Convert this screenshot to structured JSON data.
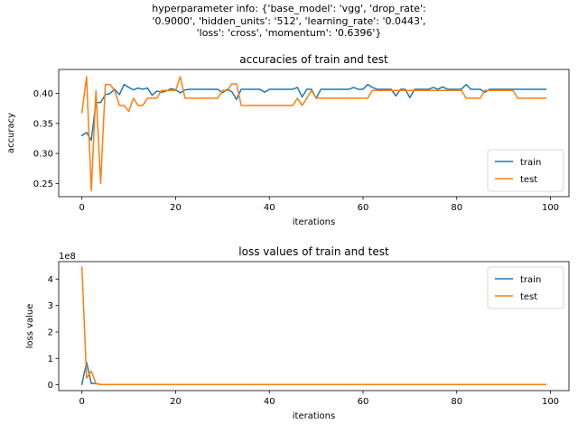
{
  "suptitle": {
    "line1": "hyperparameter info: {'base_model': 'vgg', 'drop_rate':",
    "line2": "'0.9000', 'hidden_units': '512', 'learning_rate': '0.0443',",
    "line3": "'loss': 'cross', 'momentum': '0.6396'}"
  },
  "colors": {
    "train": "#1f77b4",
    "test": "#ff7f0e"
  },
  "chart_data": [
    {
      "type": "line",
      "title": "accuracies of train and test",
      "xlabel": "iterations",
      "ylabel": "accuracy",
      "xlim": [
        -4.95,
        103.95
      ],
      "ylim": [
        0.228,
        0.44
      ],
      "xticks": [
        0,
        20,
        40,
        60,
        80,
        100
      ],
      "yticks": [
        0.25,
        0.3,
        0.35,
        0.4
      ],
      "ytick_labels": [
        "0.25",
        "0.30",
        "0.35",
        "0.40"
      ],
      "grid": false,
      "legend": "lower right",
      "series": [
        {
          "name": "train",
          "values": [
            0.33,
            0.335,
            0.322,
            0.385,
            0.385,
            0.398,
            0.4,
            0.407,
            0.398,
            0.415,
            0.41,
            0.406,
            0.409,
            0.407,
            0.409,
            0.397,
            0.404,
            0.402,
            0.404,
            0.408,
            0.406,
            0.401,
            0.406,
            0.407,
            0.407,
            0.407,
            0.407,
            0.407,
            0.407,
            0.407,
            0.401,
            0.407,
            0.403,
            0.39,
            0.407,
            0.407,
            0.407,
            0.407,
            0.407,
            0.402,
            0.407,
            0.407,
            0.407,
            0.407,
            0.407,
            0.407,
            0.41,
            0.394,
            0.407,
            0.407,
            0.392,
            0.407,
            0.407,
            0.407,
            0.407,
            0.407,
            0.407,
            0.407,
            0.41,
            0.407,
            0.407,
            0.415,
            0.41,
            0.407,
            0.407,
            0.407,
            0.407,
            0.396,
            0.407,
            0.407,
            0.393,
            0.407,
            0.407,
            0.407,
            0.407,
            0.41,
            0.407,
            0.411,
            0.407,
            0.407,
            0.407,
            0.407,
            0.415,
            0.407,
            0.407,
            0.407,
            0.402,
            0.407,
            0.407,
            0.407,
            0.407,
            0.407,
            0.407,
            0.407,
            0.407,
            0.407,
            0.407,
            0.407,
            0.407,
            0.407
          ]
        },
        {
          "name": "test",
          "values": [
            0.368,
            0.428,
            0.238,
            0.405,
            0.25,
            0.415,
            0.415,
            0.405,
            0.38,
            0.38,
            0.37,
            0.392,
            0.38,
            0.38,
            0.392,
            0.392,
            0.392,
            0.405,
            0.405,
            0.405,
            0.405,
            0.428,
            0.392,
            0.392,
            0.392,
            0.392,
            0.392,
            0.392,
            0.392,
            0.392,
            0.405,
            0.405,
            0.416,
            0.416,
            0.38,
            0.38,
            0.38,
            0.38,
            0.38,
            0.38,
            0.38,
            0.38,
            0.38,
            0.38,
            0.38,
            0.38,
            0.392,
            0.38,
            0.392,
            0.405,
            0.392,
            0.392,
            0.392,
            0.392,
            0.392,
            0.392,
            0.392,
            0.392,
            0.392,
            0.392,
            0.392,
            0.392,
            0.405,
            0.405,
            0.405,
            0.405,
            0.405,
            0.405,
            0.405,
            0.405,
            0.405,
            0.405,
            0.405,
            0.405,
            0.405,
            0.405,
            0.405,
            0.405,
            0.405,
            0.405,
            0.405,
            0.405,
            0.392,
            0.392,
            0.392,
            0.392,
            0.405,
            0.405,
            0.405,
            0.405,
            0.405,
            0.405,
            0.405,
            0.392,
            0.392,
            0.392,
            0.392,
            0.392,
            0.392,
            0.392
          ]
        }
      ]
    },
    {
      "type": "line",
      "title": "loss values of train and test",
      "xlabel": "iterations",
      "ylabel": "loss value",
      "offset_text": "1e8",
      "xlim": [
        -4.95,
        103.95
      ],
      "ylim": [
        -0.22,
        4.66
      ],
      "xticks": [
        0,
        20,
        40,
        60,
        80,
        100
      ],
      "yticks": [
        0,
        1,
        2,
        3,
        4
      ],
      "ytick_labels": [
        "0",
        "1",
        "2",
        "3",
        "4"
      ],
      "grid": false,
      "legend": "upper right",
      "series": [
        {
          "name": "train",
          "values": [
            0.02,
            0.85,
            0.05,
            0.05,
            0.01,
            0.01,
            0.01,
            0.01,
            0.01,
            0.01,
            0.01,
            0.01,
            0.01,
            0.01,
            0.01,
            0.01,
            0.01,
            0.01,
            0.01,
            0.01,
            0.01,
            0.01,
            0.01,
            0.01,
            0.01,
            0.01,
            0.01,
            0.01,
            0.01,
            0.01,
            0.01,
            0.01,
            0.01,
            0.01,
            0.01,
            0.01,
            0.01,
            0.01,
            0.01,
            0.01,
            0.01,
            0.01,
            0.01,
            0.01,
            0.01,
            0.01,
            0.01,
            0.01,
            0.01,
            0.01,
            0.01,
            0.01,
            0.01,
            0.01,
            0.01,
            0.01,
            0.01,
            0.01,
            0.01,
            0.01,
            0.01,
            0.01,
            0.01,
            0.01,
            0.01,
            0.01,
            0.01,
            0.01,
            0.01,
            0.01,
            0.01,
            0.01,
            0.01,
            0.01,
            0.01,
            0.01,
            0.01,
            0.01,
            0.01,
            0.01,
            0.01,
            0.01,
            0.01,
            0.01,
            0.01,
            0.01,
            0.01,
            0.01,
            0.01,
            0.01,
            0.01,
            0.01,
            0.01,
            0.01,
            0.01,
            0.01,
            0.01,
            0.01,
            0.01,
            0.01
          ]
        },
        {
          "name": "test",
          "values": [
            4.45,
            0.25,
            0.52,
            0.05,
            0.01,
            0.01,
            0.01,
            0.01,
            0.01,
            0.01,
            0.01,
            0.01,
            0.01,
            0.01,
            0.01,
            0.01,
            0.01,
            0.01,
            0.01,
            0.01,
            0.01,
            0.01,
            0.01,
            0.01,
            0.01,
            0.01,
            0.01,
            0.01,
            0.01,
            0.01,
            0.01,
            0.01,
            0.01,
            0.01,
            0.01,
            0.01,
            0.01,
            0.01,
            0.01,
            0.01,
            0.01,
            0.01,
            0.01,
            0.01,
            0.01,
            0.01,
            0.01,
            0.01,
            0.01,
            0.01,
            0.01,
            0.01,
            0.01,
            0.01,
            0.01,
            0.01,
            0.01,
            0.01,
            0.01,
            0.01,
            0.01,
            0.01,
            0.01,
            0.01,
            0.01,
            0.01,
            0.01,
            0.01,
            0.01,
            0.01,
            0.01,
            0.01,
            0.01,
            0.01,
            0.01,
            0.01,
            0.01,
            0.01,
            0.01,
            0.01,
            0.01,
            0.01,
            0.01,
            0.01,
            0.01,
            0.01,
            0.01,
            0.01,
            0.01,
            0.01,
            0.01,
            0.01,
            0.01,
            0.01,
            0.01,
            0.01,
            0.01,
            0.01,
            0.01,
            0.01
          ]
        }
      ]
    }
  ]
}
